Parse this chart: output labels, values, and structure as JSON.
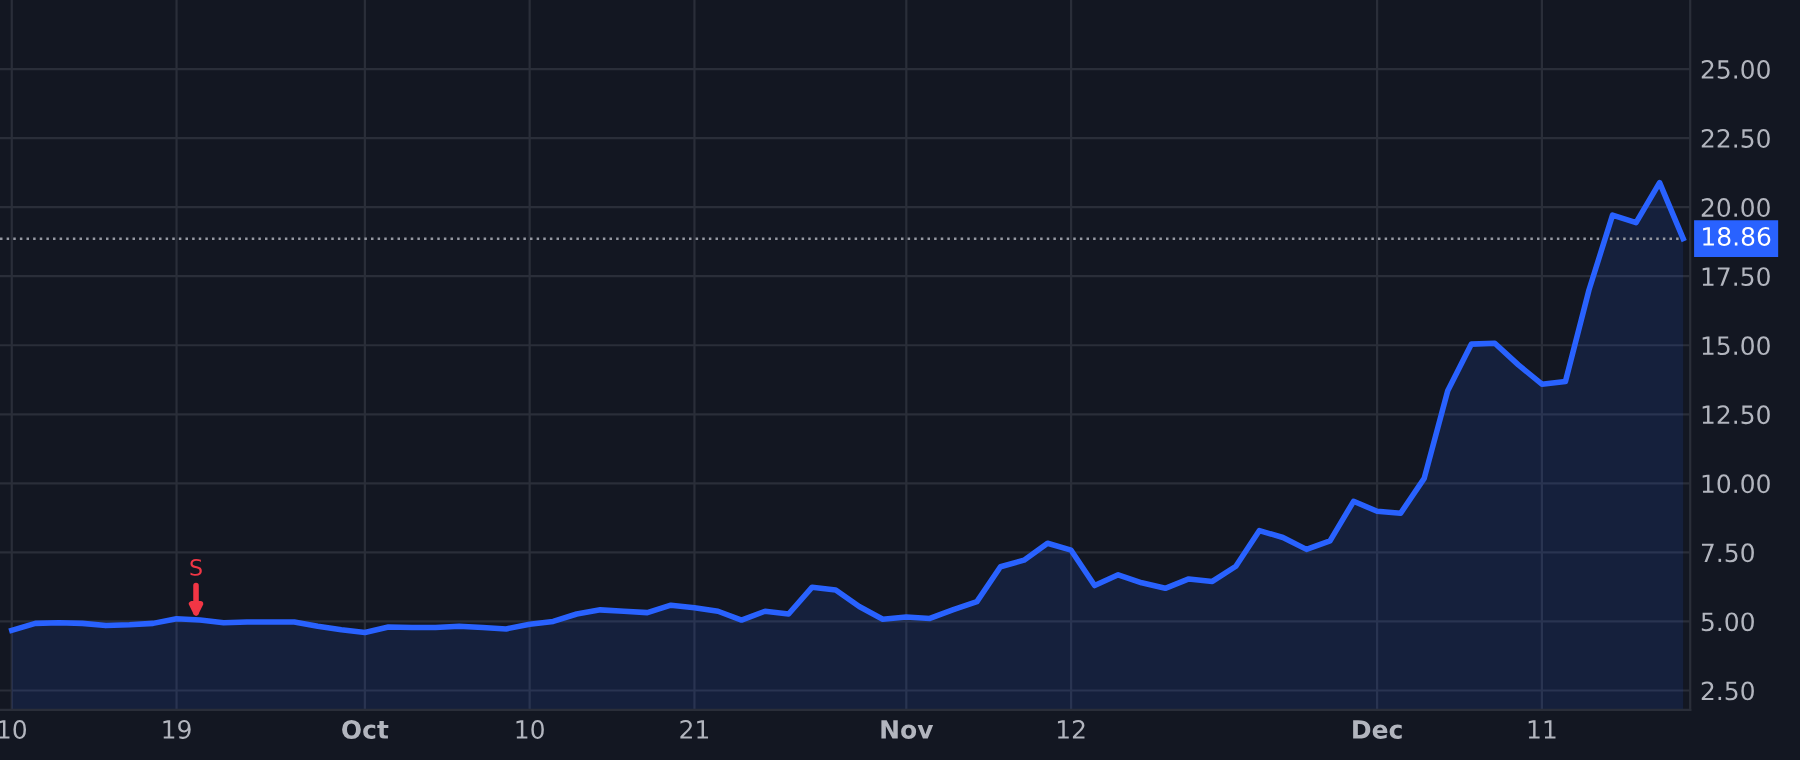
{
  "chart_data": {
    "type": "area",
    "categories": [
      "10",
      null,
      null,
      null,
      null,
      null,
      null,
      "19",
      null,
      null,
      null,
      null,
      null,
      null,
      null,
      "Oct",
      null,
      null,
      null,
      null,
      null,
      null,
      "10",
      null,
      null,
      null,
      null,
      null,
      null,
      "21",
      null,
      null,
      null,
      null,
      null,
      null,
      null,
      null,
      "Nov",
      null,
      null,
      null,
      null,
      null,
      null,
      "12",
      null,
      null,
      null,
      null,
      null,
      null,
      null,
      null,
      null,
      null,
      null,
      null,
      "Dec",
      null,
      null,
      null,
      null,
      null,
      null,
      "11",
      null,
      null,
      null,
      null,
      null,
      null
    ],
    "series": [
      {
        "color": "#2962ff",
        "values": [
          4.68,
          4.93,
          4.95,
          4.93,
          4.85,
          4.88,
          4.93,
          5.1,
          5.05,
          4.95,
          4.98,
          4.98,
          4.98,
          4.83,
          4.7,
          4.6,
          4.8,
          4.78,
          4.78,
          4.83,
          4.78,
          4.73,
          4.9,
          5.0,
          5.27,
          5.42,
          5.37,
          5.32,
          5.59,
          5.5,
          5.37,
          5.05,
          5.37,
          5.27,
          6.24,
          6.14,
          5.54,
          5.08,
          5.16,
          5.11,
          5.43,
          5.72,
          6.98,
          7.22,
          7.83,
          7.58,
          6.3,
          6.69,
          6.4,
          6.2,
          6.54,
          6.45,
          7.0,
          8.29,
          8.04,
          7.61,
          7.92,
          9.35,
          8.99,
          8.92,
          10.18,
          13.35,
          15.04,
          15.07,
          14.29,
          13.59,
          13.69,
          17.0,
          19.71,
          19.44,
          20.89,
          18.86
        ]
      }
    ],
    "ylim": [
      1.8,
      27.5
    ],
    "yticks": [
      {
        "value": 2.5,
        "label": "2.50"
      },
      {
        "value": 5,
        "label": "5.00"
      },
      {
        "value": 7.5,
        "label": "7.50"
      },
      {
        "value": 10,
        "label": "10.00"
      },
      {
        "value": 12.5,
        "label": "12.50"
      },
      {
        "value": 15,
        "label": "15.00"
      },
      {
        "value": 17.5,
        "label": "17.50"
      },
      {
        "value": 20,
        "label": "20.00"
      },
      {
        "value": 22.5,
        "label": "22.50"
      },
      {
        "value": 25,
        "label": "25.00"
      }
    ],
    "ref_lines": [
      {
        "axis": "y",
        "value": 18.86,
        "label": "18.86",
        "color": "#9598a1",
        "line_style": "dotted"
      }
    ],
    "annotations": [
      "S"
    ],
    "grid": true,
    "marker": "none",
    "line_style": "solid"
  }
}
